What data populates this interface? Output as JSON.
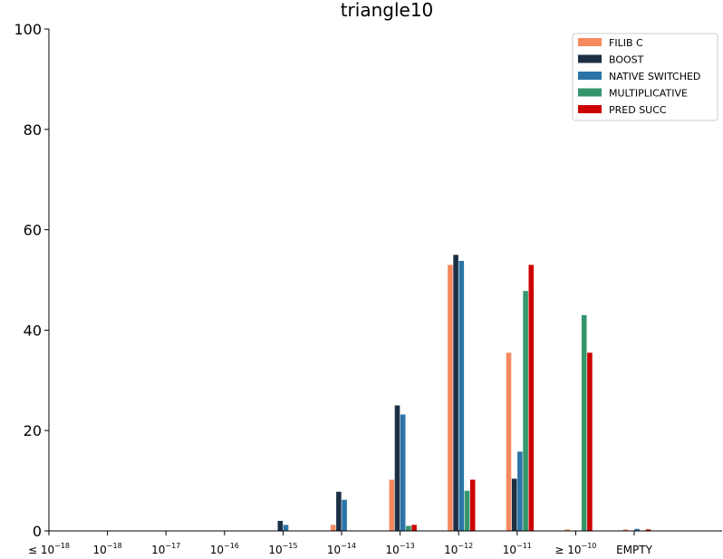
{
  "chart_data": {
    "type": "bar",
    "title": "triangle10",
    "xlabel": "",
    "ylabel": "",
    "ylim": [
      0,
      100
    ],
    "yticks": [
      0,
      20,
      40,
      60,
      80,
      100
    ],
    "categories": [
      {
        "base": "≤ 10",
        "exp": "−18"
      },
      {
        "base": "10",
        "exp": "−18"
      },
      {
        "base": "10",
        "exp": "−17"
      },
      {
        "base": "10",
        "exp": "−16"
      },
      {
        "base": "10",
        "exp": "−15"
      },
      {
        "base": "10",
        "exp": "−14"
      },
      {
        "base": "10",
        "exp": "−13"
      },
      {
        "base": "10",
        "exp": "−12"
      },
      {
        "base": "10",
        "exp": "−11"
      },
      {
        "base": "≥ 10",
        "exp": "−10"
      },
      {
        "base": "EMPTY",
        "exp": ""
      }
    ],
    "legend_position": "top-right",
    "series": [
      {
        "name": "FILIB C",
        "color": "#f58a5e",
        "values": [
          0,
          0,
          0,
          0,
          0,
          1.2,
          10.2,
          53.0,
          35.5,
          0.3,
          0.3
        ]
      },
      {
        "name": "BOOST",
        "color": "#1c2f45",
        "values": [
          0,
          0,
          0,
          0,
          2.0,
          7.8,
          25.0,
          55.0,
          10.4,
          0,
          0
        ]
      },
      {
        "name": "NATIVE SWITCHED",
        "color": "#2c74a8",
        "values": [
          0,
          0,
          0,
          0,
          1.2,
          6.2,
          23.2,
          53.8,
          15.8,
          0,
          0.4
        ]
      },
      {
        "name": "MULTIPLICATIVE",
        "color": "#35956d",
        "values": [
          0,
          0,
          0,
          0,
          0,
          0,
          1.0,
          8.0,
          47.8,
          43.0,
          0
        ]
      },
      {
        "name": "PRED SUCC",
        "color": "#cc0000",
        "values": [
          0,
          0,
          0,
          0,
          0,
          0,
          1.2,
          10.2,
          53.0,
          35.5,
          0.3
        ]
      }
    ]
  }
}
